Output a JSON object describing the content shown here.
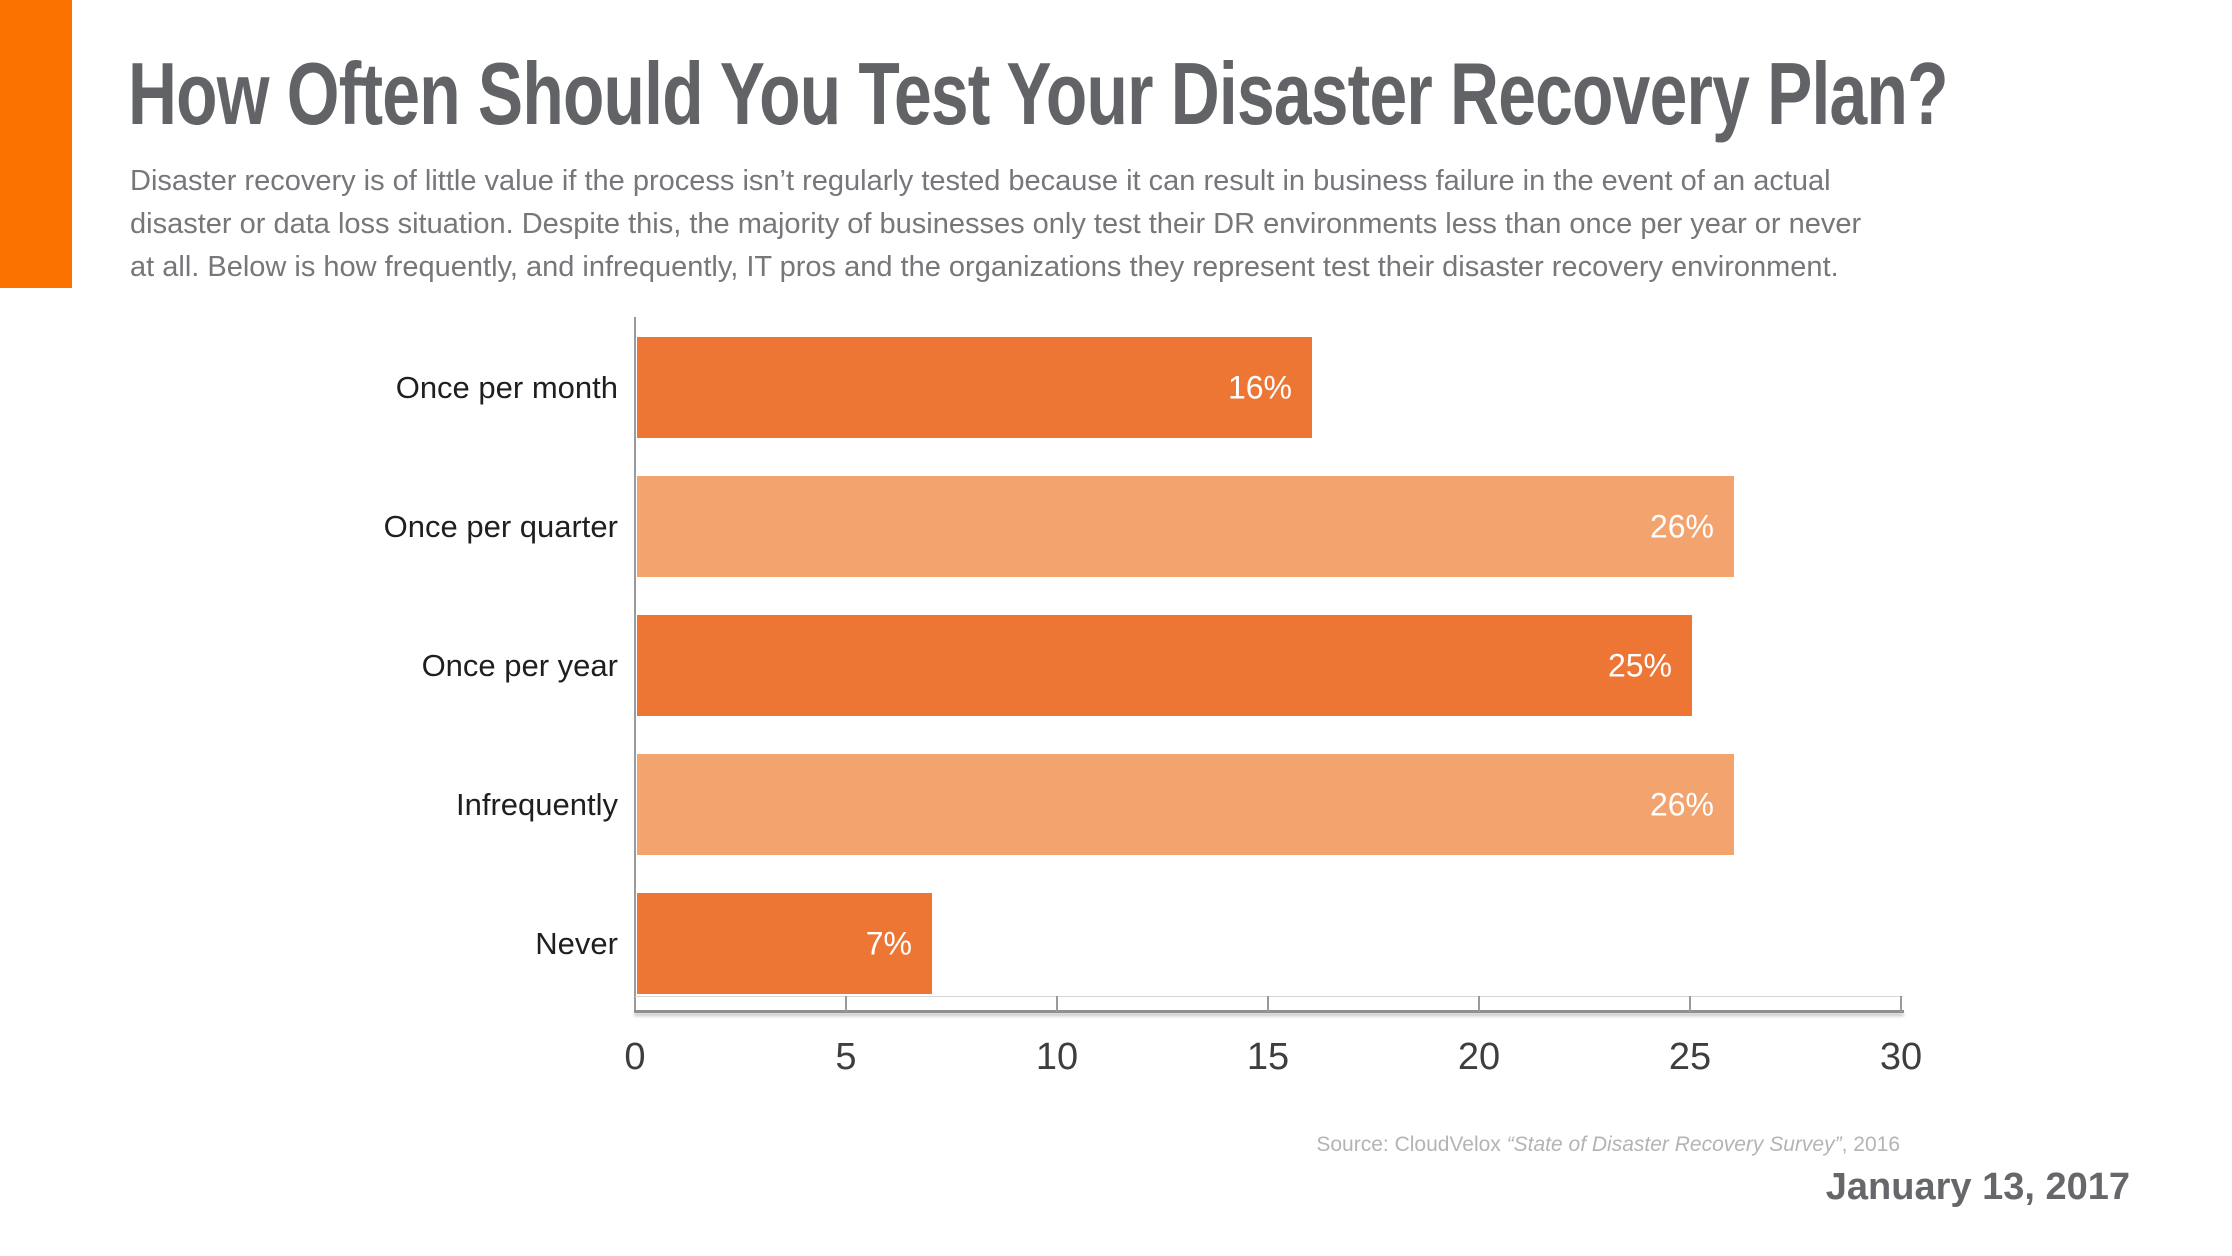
{
  "page": {
    "background": "#ffffff",
    "accent_block_color": "#fb7100"
  },
  "header": {
    "title": "How Often Should You Test Your Disaster Recovery Plan?",
    "intro_lines": [
      "Disaster recovery is of little value if the process isn’t regularly tested because it can result in business failure in the event of an actual",
      "disaster or data loss situation. Despite this, the majority of businesses only test their DR environments less than once per year or never",
      "at all. Below is how frequently, and infrequently, IT pros and the organizations they represent test their disaster recovery environment."
    ]
  },
  "chart_data": {
    "type": "bar",
    "orientation": "horizontal",
    "title": "",
    "xlabel": "",
    "ylabel": "",
    "categories": [
      "Once per month",
      "Once per quarter",
      "Once per year",
      "Infrequently",
      "Never"
    ],
    "values": [
      16,
      26,
      25,
      26,
      7
    ],
    "value_labels": [
      "16%",
      "26%",
      "25%",
      "26%",
      "7%"
    ],
    "bar_colors": [
      "#ee7634",
      "#f2a36e",
      "#ee7634",
      "#f2a36e",
      "#ee7634"
    ],
    "value_label_color": "#ffffff",
    "xlim": [
      0,
      30
    ],
    "x_ticks": [
      "0",
      "5",
      "10",
      "15",
      "20",
      "25",
      "30"
    ],
    "grid": false,
    "legend": false
  },
  "footer": {
    "source_prefix": "Source: CloudVelox ",
    "source_title_italic": "“State of Disaster Recovery Survey”",
    "source_suffix": ", 2016",
    "date": "January 13, 2017"
  }
}
